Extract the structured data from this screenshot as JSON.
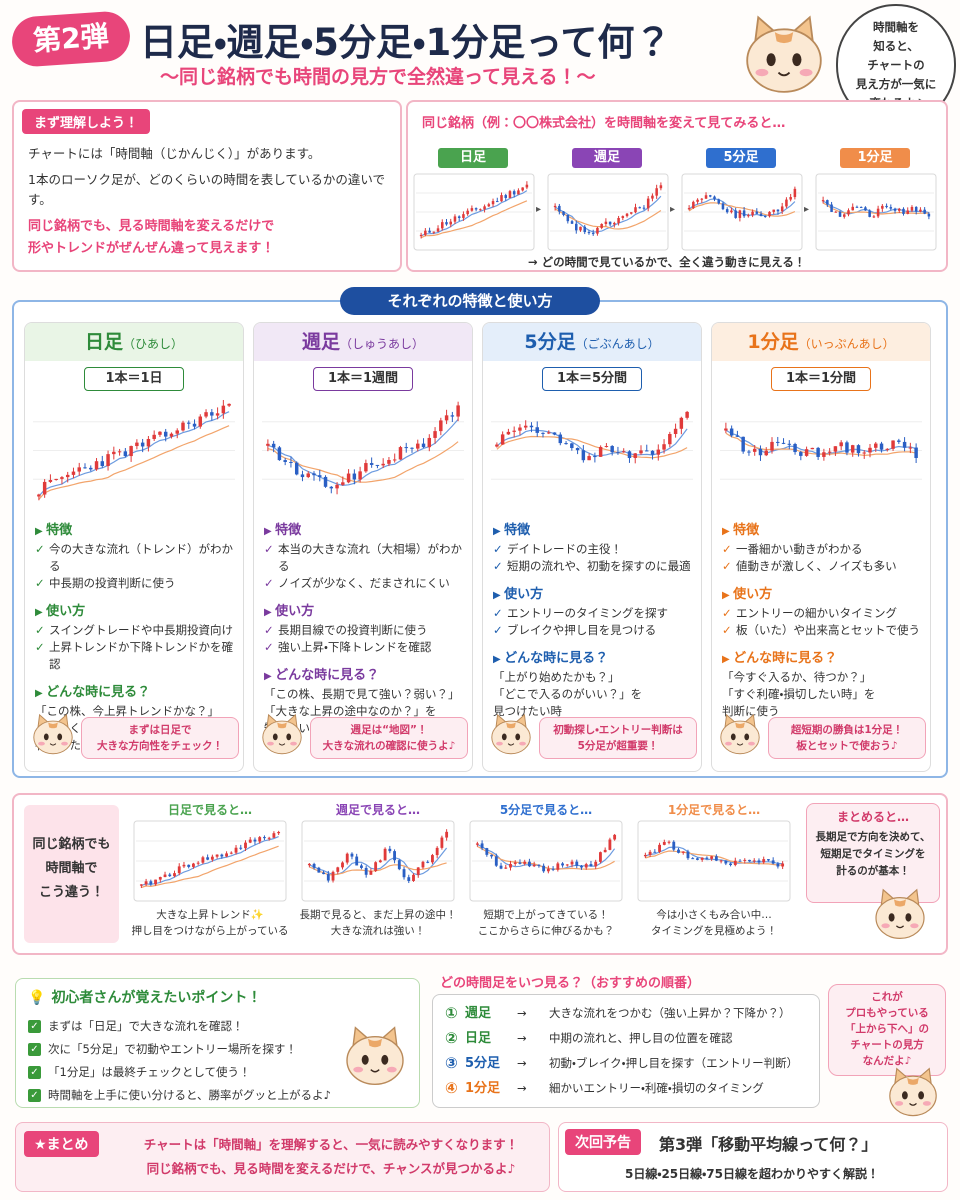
{
  "header": {
    "badge": "第2弾",
    "title": "日足・週足・5分足・1分足って何？",
    "subtitle": "〜同じ銘柄でも時間の見方で全然違って見える！〜",
    "bubble": [
      "時間軸を",
      "知ると、",
      "チャートの",
      "見え方が一気に",
      "変わるよ♪"
    ]
  },
  "intro": {
    "heading": "まず理解しよう！",
    "paragraphs": [
      "チャートには「時間軸（じかんじく）」があります。",
      "1本のローソク足が、どのくらいの時間を表しているかの違いです。"
    ],
    "emphasis": [
      "同じ銘柄でも、見る時間軸を変えるだけで",
      "形やトレンドがぜんぜん違って見えます！"
    ]
  },
  "compare": {
    "heading": "同じ銘柄（例：〇〇株式会社）を時間軸を変えて見てみると…",
    "labels": [
      "日足",
      "週足",
      "5分足",
      "1分足"
    ],
    "note": "→ どの時間で見ているかで、全く違う動きに見える！"
  },
  "features": {
    "heading": "それぞれの特徴と使い方",
    "cards": [
      {
        "title": "日足",
        "reading": "（ひあし）",
        "unit": "1本＝1日",
        "sections": [
          {
            "heading": "特徴",
            "items": [
              "今の大きな流れ（トレンド）がわかる",
              "中長期の投資判断に使う"
            ]
          },
          {
            "heading": "使い方",
            "items": [
              "スイングトレードや中長期投資向け",
              "上昇トレンドか下降トレンドかを確認"
            ]
          },
          {
            "heading": "どんな時に見る？",
            "lines": [
              "「この株、今上昇トレンドかな？」",
              "「大きく下がってないかな？」を",
              "判断したい時"
            ]
          }
        ],
        "tip": [
          "まずは日足で",
          "大きな方向性をチェック！"
        ]
      },
      {
        "title": "週足",
        "reading": "（しゅうあし）",
        "unit": "1本＝1週間",
        "sections": [
          {
            "heading": "特徴",
            "items": [
              "本当の大きな流れ（大相場）がわかる",
              "ノイズが少なく、だまされにくい"
            ]
          },
          {
            "heading": "使い方",
            "items": [
              "長期目線での投資判断に使う",
              "強い上昇・下降トレンドを確認"
            ]
          },
          {
            "heading": "どんな時に見る？",
            "lines": [
              "「この株、長期で見て強い？弱い？」",
              "「大きな上昇の途中なのか？」を",
              "知りたい時"
            ]
          }
        ],
        "tip": [
          "週足は“地図”！",
          "大きな流れの確認に使うよ♪"
        ]
      },
      {
        "title": "5分足",
        "reading": "（ごぶんあし）",
        "unit": "1本＝5分間",
        "sections": [
          {
            "heading": "特徴",
            "items": [
              "デイトレードの主役！",
              "短期の流れや、初動を探すのに最適"
            ]
          },
          {
            "heading": "使い方",
            "items": [
              "エントリーのタイミングを探す",
              "ブレイクや押し目を見つける"
            ]
          },
          {
            "heading": "どんな時に見る？",
            "lines": [
              "「上がり始めたかも？」",
              "「どこで入るのがいい？」を",
              "見つけたい時"
            ]
          }
        ],
        "tip": [
          "初動探し・エントリー判断は",
          "5分足が超重要！"
        ]
      },
      {
        "title": "1分足",
        "reading": "（いっぷんあし）",
        "unit": "1本＝1分間",
        "sections": [
          {
            "heading": "特徴",
            "items": [
              "一番細かい動きがわかる",
              "値動きが激しく、ノイズも多い"
            ]
          },
          {
            "heading": "使い方",
            "items": [
              "エントリーの細かいタイミング",
              "板（いた）や出来高とセットで使う"
            ]
          },
          {
            "heading": "どんな時に見る？",
            "lines": [
              "「今すぐ入るか、待つか？」",
              "「すぐ利確・損切したい時」を",
              "判断に使う"
            ]
          }
        ],
        "tip": [
          "超短期の勝負は1分足！",
          "板とセットで使おう♪"
        ]
      }
    ]
  },
  "views": {
    "label": [
      "同じ銘柄でも",
      "時間軸で",
      "こう違う！"
    ],
    "panels": [
      {
        "title": "日足で見ると…",
        "caption": [
          "大きな上昇トレンド✨",
          "押し目をつけながら上がっている"
        ]
      },
      {
        "title": "週足で見ると…",
        "caption": [
          "長期で見ると、まだ上昇の途中！",
          "大きな流れは強い！"
        ]
      },
      {
        "title": "5分足で見ると…",
        "caption": [
          "短期で上がってきている！",
          "ここからさらに伸びるかも？"
        ]
      },
      {
        "title": "1分足で見ると…",
        "caption": [
          "今は小さくもみ合い中…",
          "タイミングを見極めよう！"
        ]
      }
    ],
    "summary": {
      "heading": "まとめると…",
      "lines": [
        "長期足で方向を決めて、",
        "短期足でタイミングを",
        "計るのが基本！"
      ]
    }
  },
  "points": {
    "heading": "初心者さんが覚えたいポイント！",
    "items": [
      "まずは「日足」で大きな流れを確認！",
      "次に「5分足」で初動やエントリー場所を探す！",
      "「1分足」は最終チェックとして使う！",
      "時間軸を上手に使い分けると、勝率がグッと上がるよ♪"
    ]
  },
  "order": {
    "heading": "どの時間足をいつ見る？（おすすめの順番）",
    "rows": [
      {
        "num": "①",
        "name": "週足",
        "desc": "大きな流れをつかむ（強い上昇か？下降か？）"
      },
      {
        "num": "②",
        "name": "日足",
        "desc": "中期の流れと、押し目の位置を確認"
      },
      {
        "num": "③",
        "name": "5分足",
        "desc": "初動・ブレイク・押し目を探す（エントリー判断）"
      },
      {
        "num": "④",
        "name": "1分足",
        "desc": "細かいエントリー・利確・損切のタイミング"
      }
    ],
    "bubble": [
      "これが",
      "プロもやっている",
      "「上から下へ」の",
      "チャートの見方",
      "なんだよ♪"
    ]
  },
  "footer": {
    "label": "★まとめ",
    "lines": [
      "チャートは「時間軸」を理解すると、一気に読みやすくなります！",
      "同じ銘柄でも、見る時間を変えるだけで、チャンスが見つかるよ♪"
    ]
  },
  "next": {
    "label": "次回予告",
    "title": "第3弾「移動平均線って何？」",
    "text": "5日線・25日線・75日線を超わかりやすく解説！"
  }
}
